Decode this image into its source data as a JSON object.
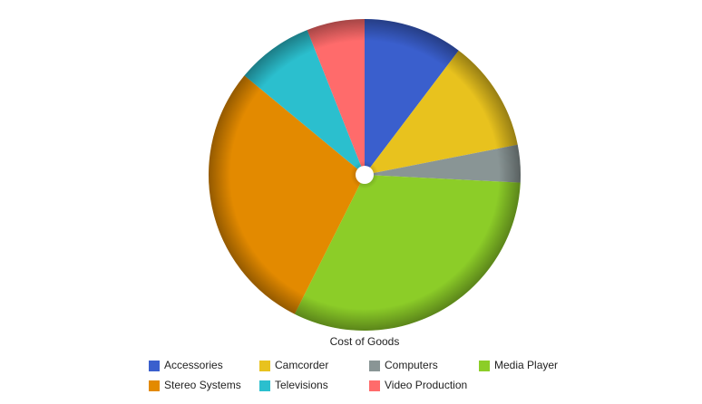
{
  "chart_data": {
    "type": "pie",
    "title": "Cost of Goods",
    "categories": [
      "Accessories",
      "Camcorder",
      "Computers",
      "Media Player",
      "Stereo Systems",
      "Televisions",
      "Video Production"
    ],
    "values": [
      10.3,
      11.6,
      3.9,
      31.6,
      28.6,
      8,
      6
    ],
    "colors": [
      "#3a5fcd",
      "#e8c21e",
      "#899595",
      "#8ccd28",
      "#e38a00",
      "#2bbfce",
      "#ff6b6b"
    ]
  }
}
